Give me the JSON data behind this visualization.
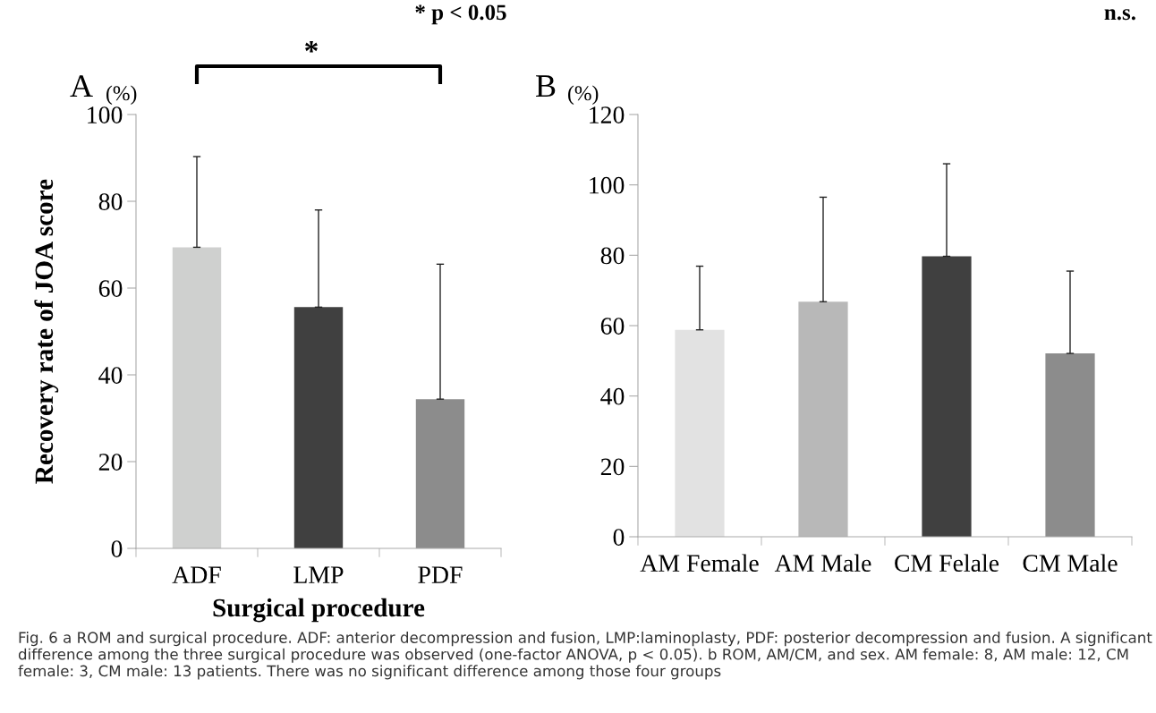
{
  "chart_data": [
    {
      "type": "bar",
      "ylabel": "Recovery rate of JOA score",
      "xlabel": "Surgical procedure",
      "categories": [
        "ADF",
        "LMP",
        "PDF"
      ],
      "values": [
        69.4,
        55.6,
        34.4
      ],
      "errors": [
        [
          69.4,
          90.3
        ],
        [
          55.6,
          78.0
        ],
        [
          34.4,
          65.5
        ]
      ],
      "colors": [
        "#cfd0cf",
        "#404040",
        "#8c8c8c"
      ],
      "ylim": [
        0,
        100
      ],
      "yticks": [
        0,
        20,
        40,
        60,
        80,
        100
      ],
      "grid": false,
      "legend": false,
      "annotations": [
        "A",
        "(%)",
        "*",
        "* p < 0.05",
        "Fig. 6 a ROM and surgical procedure. ADF: anterior decompression and fusion, LMP:laminoplasty, PDF: posterior decompression and fusion. A significant difference among the three surgical procedure was observed (one-factor ANOVA, p < 0.05). b ROM, AM/CM, and sex. AM female: 8, AM male: 12, CM female: 3, CM male: 13 patients. There was no significant difference among those four groups"
      ]
    },
    {
      "type": "bar",
      "categories": [
        "AM Female",
        "AM Male",
        "CM Felale",
        "CM Male"
      ],
      "values": [
        58.8,
        66.8,
        79.7,
        52.1
      ],
      "errors": [
        [
          58.8,
          76.9
        ],
        [
          66.8,
          96.5
        ],
        [
          79.7,
          106.0
        ],
        [
          52.1,
          75.5
        ]
      ],
      "colors": [
        "#e2e2e2",
        "#b8b8b8",
        "#404040",
        "#8c8c8c"
      ],
      "ylim": [
        0,
        120
      ],
      "yticks": [
        0,
        20,
        40,
        60,
        80,
        100,
        120
      ],
      "grid": false,
      "legend": false,
      "annotations": [
        "B",
        "(%)",
        "n.s."
      ]
    }
  ]
}
